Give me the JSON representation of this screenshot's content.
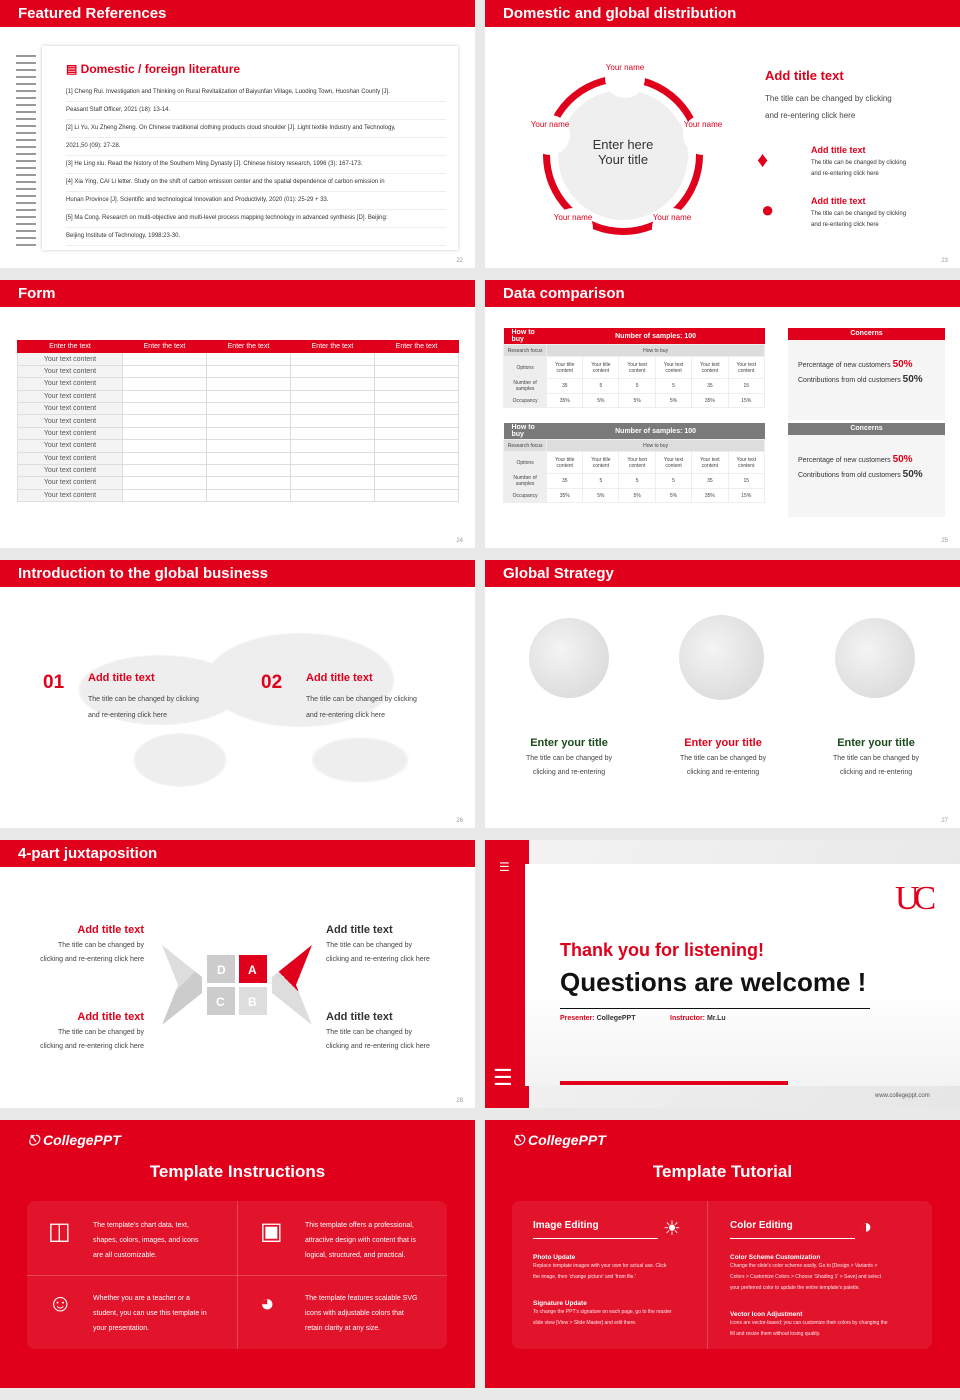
{
  "slides": [
    {
      "title": "Featured References",
      "page": "22",
      "heading": "Domestic / foreign literature",
      "refs": [
        "[1] Cheng Rui. Investigation and Thinking on Rural Revitalization of Baiyunfan Village, Luoding Town, Huoshan County [J].",
        "Peasant Staff Officer, 2021 (18): 13-14.",
        "[2] Li Yu, Xu Zheng Zheng. On Chinese traditional clothing products cloud shoulder [J]. Light textile Industry and Technology,",
        "2021,50 (09): 27-28.",
        "[3] He Ling xiu. Read the history of the Southern Ming Dynasty [J]. Chinese history research, 1996 (3): 167-173.",
        "[4] Xia Ying, CAI Li letter. Study on the shift of carbon emission center and the spatial dependence of carbon emission in",
        "Hunan Province [J]. Scientific and technological Innovation and Productivity, 2020 (01): 25-29 + 33.",
        "[5] Ma Cong. Research on multi-objective and multi-level process mapping technology in advanced synthesis [D]. Beijing:",
        "Beijing Institute of Technology, 1998:23-30."
      ]
    },
    {
      "title": "Domestic and global distribution",
      "page": "23",
      "center": [
        "Enter here",
        "Your title"
      ],
      "node": "Your name",
      "add_title": "Add title text",
      "desc": [
        "The title can be changed by clicking",
        "and re-entering click here"
      ],
      "items": [
        {
          "title": "Add title text",
          "desc": [
            "The title can be changed by clicking",
            "and re-entering click here"
          ]
        },
        {
          "title": "Add title text",
          "desc": [
            "The title can be changed by clicking",
            "and re-entering click here"
          ]
        }
      ]
    },
    {
      "title": "Form",
      "page": "24",
      "headers": [
        "Enter the text",
        "Enter the text",
        "Enter the text",
        "Enter the text",
        "Enter the text"
      ],
      "cell": "Your text content",
      "rows": 12
    },
    {
      "title": "Data comparison",
      "page": "25",
      "tables": [
        {
          "h1": "How to buy",
          "h2": "Number of samples: 100",
          "focus_label": "Research focus",
          "focus": "How to buy",
          "options": "Options",
          "cols": [
            "Your title content",
            "Your title content",
            "Your text content",
            "Your text content",
            "Your text content",
            "Your text content"
          ],
          "samples_label": "Number of samples",
          "samples": [
            "35",
            "5",
            "5",
            "5",
            "35",
            "15"
          ],
          "occ_label": "Occupancy",
          "occ": [
            "35%",
            "5%",
            "5%",
            "5%",
            "35%",
            "15%"
          ],
          "color": "#e0001b"
        },
        {
          "h1": "How to buy",
          "h2": "Number of samples: 100",
          "focus_label": "Research focus",
          "focus": "How to buy",
          "options": "Options",
          "cols": [
            "Your title content",
            "Your title content",
            "Your text content",
            "Your text content",
            "Your text content",
            "Your text content"
          ],
          "samples_label": "Number of samples",
          "samples": [
            "35",
            "5",
            "5",
            "5",
            "35",
            "15"
          ],
          "occ_label": "Occupancy",
          "occ": [
            "35%",
            "5%",
            "5%",
            "5%",
            "35%",
            "15%"
          ],
          "color": "#7a7a7a"
        }
      ],
      "concerns": {
        "title": "Concerns",
        "new_label": "Percentage of new customers",
        "new_val": "50%",
        "old_label": "Contributions from old customers",
        "old_val": "50%"
      }
    },
    {
      "title": "Introduction to the global business",
      "page": "26",
      "items": [
        {
          "num": "01",
          "title": "Add title text",
          "desc": [
            "The title can be changed by clicking",
            "and re-entering click here"
          ]
        },
        {
          "num": "02",
          "title": "Add title text",
          "desc": [
            "The title can be changed by clicking",
            "and re-entering click here"
          ]
        }
      ]
    },
    {
      "title": "Global Strategy",
      "page": "27",
      "items": [
        {
          "title": "Enter your title",
          "color": "#1a4a1a",
          "desc": [
            "The title can be changed by",
            "clicking and re-entering"
          ]
        },
        {
          "title": "Enter your title",
          "color": "#e0001b",
          "desc": [
            "The title can be changed by",
            "clicking and re-entering"
          ]
        },
        {
          "title": "Enter your title",
          "color": "#1a4a1a",
          "desc": [
            "The title can be changed by",
            "clicking and re-entering"
          ]
        }
      ]
    },
    {
      "title": "4-part juxtaposition",
      "page": "28",
      "letters": [
        "D",
        "A",
        "C",
        "B"
      ],
      "items": [
        {
          "title": "Add title text",
          "desc": [
            "The title can be changed by",
            "clicking and re-entering click here"
          ]
        },
        {
          "title": "Add title text",
          "desc": [
            "The title can be changed by",
            "clicking and re-entering click here"
          ]
        },
        {
          "title": "Add title text",
          "desc": [
            "The title can be changed by",
            "clicking and re-entering click here"
          ]
        },
        {
          "title": "Add title text",
          "desc": [
            "The title can be changed by",
            "clicking and re-entering click here"
          ]
        }
      ]
    },
    {
      "thanks": "Thank you for listening!",
      "questions": "Questions are welcome !",
      "presenter_label": "Presenter:",
      "presenter": "CollegePPT",
      "instructor_label": "Instructor:",
      "instructor": "Mr.Lu",
      "url": "www.collegeppt.com",
      "logo": "UC"
    },
    {
      "brand": "CollegePPT",
      "title": "Template Instructions",
      "items": [
        [
          "The template's chart data, text,",
          "shapes, colors, images, and icons",
          "are all customizable."
        ],
        [
          "This template offers a professional,",
          "attractive design with content that is",
          "logical, structured, and practical."
        ],
        [
          "Whether you are a teacher or a",
          "student, you can use this template in",
          "your presentation."
        ],
        [
          "The template features scalable SVG",
          "icons with adjustable colors that",
          "retain clarity at any size."
        ]
      ]
    },
    {
      "brand": "CollegePPT",
      "title": "Template Tutorial",
      "sections": [
        {
          "title": "Image Editing",
          "subs": [
            {
              "h": "Photo Update",
              "t": [
                "Replace template images with your own for actual use. Click",
                "the image, then 'change picture' and 'from file.'"
              ]
            },
            {
              "h": "Signature Update",
              "t": [
                "To change the PPT's signature on each page, go to the master",
                "slide view [View > Slide Master] and edit there."
              ]
            }
          ]
        },
        {
          "title": "Color Editing",
          "subs": [
            {
              "h": "Color Scheme Customization",
              "t": [
                "Change the slide's color scheme easily. Go to [Design > Variants >",
                "Colors > Customize Colors > Choose 'Shading 1' > Save] and select",
                "your preferred color to update the entire template's palette."
              ]
            },
            {
              "h": "Vector Icon Adjustment",
              "t": [
                "Icons are vector-based; you can customize their colors by changing the",
                "fill and resize them without losing quality."
              ]
            }
          ]
        }
      ]
    }
  ],
  "accent": "#e0001b"
}
